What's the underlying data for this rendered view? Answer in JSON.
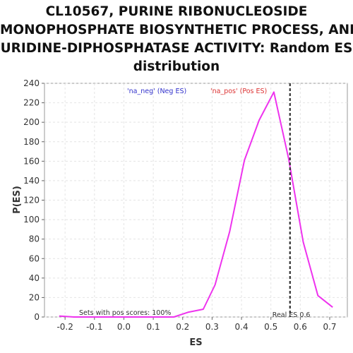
{
  "chart_data": {
    "type": "line",
    "title_lines": [
      "CL10567, PURINE RIBONUCLEOSIDE",
      "MONOPHOSPHATE BIOSYNTHETIC PROCESS, AND",
      "URIDINE-DIPHOSPHATASE ACTIVITY: Random ES",
      "distribution"
    ],
    "xlabel": "ES",
    "ylabel": "P(ES)",
    "xlim": [
      -0.27,
      0.76
    ],
    "ylim": [
      0,
      240
    ],
    "xticks": [
      -0.2,
      -0.1,
      0.0,
      0.1,
      0.2,
      0.3,
      0.4,
      0.5,
      0.6,
      0.7
    ],
    "xtick_labels": [
      "-0.2",
      "-0.1",
      "0.0",
      "0.1",
      "0.2",
      "0.3",
      "0.4",
      "0.5",
      "0.6",
      "0.7"
    ],
    "yticks": [
      0,
      20,
      40,
      60,
      80,
      100,
      120,
      140,
      160,
      180,
      200,
      220,
      240
    ],
    "ytick_labels": [
      "0",
      "20",
      "40",
      "60",
      "80",
      "100",
      "120",
      "140",
      "160",
      "180",
      "200",
      "220",
      "240"
    ],
    "grid": true,
    "legend": [
      {
        "label": "'na_neg' (Neg ES)",
        "color": "#3333cc"
      },
      {
        "label": "'na_pos' (Pos ES)",
        "color": "#dd3333"
      }
    ],
    "series": [
      {
        "color": "#ee33ee",
        "x": [
          -0.22,
          -0.17,
          -0.12,
          -0.07,
          -0.02,
          0.03,
          0.08,
          0.13,
          0.17,
          0.22,
          0.27,
          0.31,
          0.36,
          0.41,
          0.46,
          0.51,
          0.56,
          0.61,
          0.66,
          0.71
        ],
        "y": [
          1,
          0,
          0,
          0,
          0,
          0,
          0,
          0,
          0,
          5,
          8,
          33,
          88,
          161,
          202,
          231,
          163,
          77,
          22,
          10
        ]
      }
    ],
    "real_es": {
      "x": 0.565,
      "label": "Real ES 0.6",
      "color": "#333333"
    },
    "annotation": "Sets with pos scores: 100%"
  }
}
